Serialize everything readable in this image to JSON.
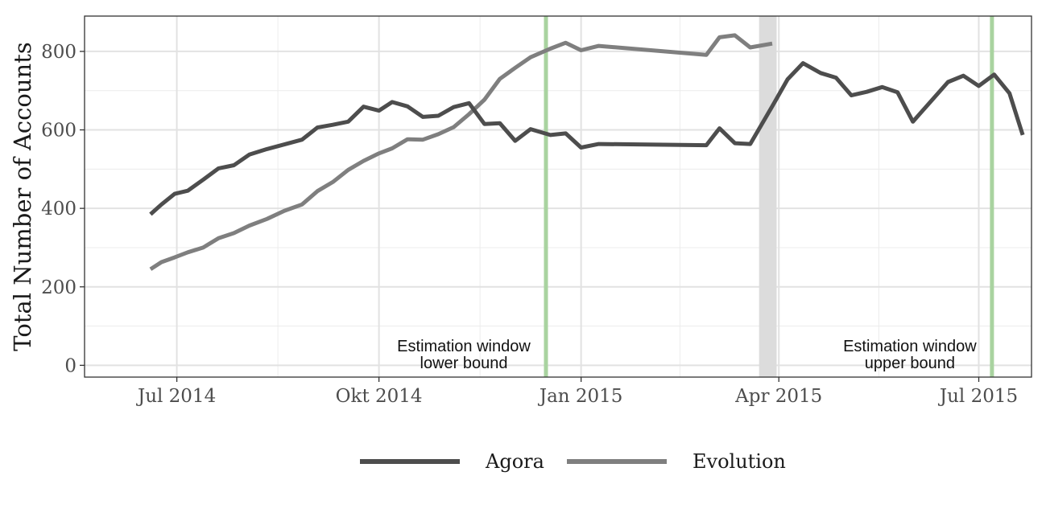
{
  "chart_data": {
    "type": "line",
    "ylabel": "Total Number of Accounts",
    "xlabel": "",
    "title": "",
    "x_ticks": [
      "Jul 2014",
      "Okt 2014",
      "Jan 2015",
      "Apr 2015",
      "Jul 2015"
    ],
    "x_tick_dates": [
      "2014-07-01",
      "2014-10-01",
      "2015-01-01",
      "2015-04-01",
      "2015-07-01"
    ],
    "y_ticks": [
      0,
      200,
      400,
      600,
      800
    ],
    "ylim": [
      -30,
      890
    ],
    "xlim": [
      "2014-05-20",
      "2015-07-25"
    ],
    "grid": true,
    "legend_position": "bottom",
    "vlines": [
      {
        "date": "2014-12-16",
        "label_line1": "Estimation window",
        "label_line2": "lower bound",
        "color": "#a9d3a0"
      },
      {
        "date": "2015-07-07",
        "label_line1": "Estimation window",
        "label_line2": "upper bound",
        "color": "#a9d3a0"
      }
    ],
    "shaded_band": {
      "from": "2015-03-23",
      "to": "2015-03-31",
      "color": "#dcdcdc"
    },
    "series": [
      {
        "name": "Agora",
        "color": "#4d4d4d",
        "points": [
          [
            "2014-06-19",
            385
          ],
          [
            "2014-06-24",
            410
          ],
          [
            "2014-06-30",
            437
          ],
          [
            "2014-07-06",
            445
          ],
          [
            "2014-07-13",
            473
          ],
          [
            "2014-07-20",
            502
          ],
          [
            "2014-07-27",
            510
          ],
          [
            "2014-08-03",
            537
          ],
          [
            "2014-08-11",
            551
          ],
          [
            "2014-08-19",
            563
          ],
          [
            "2014-08-27",
            575
          ],
          [
            "2014-09-03",
            606
          ],
          [
            "2014-09-10",
            613
          ],
          [
            "2014-09-17",
            621
          ],
          [
            "2014-09-24",
            659
          ],
          [
            "2014-10-01",
            649
          ],
          [
            "2014-10-07",
            671
          ],
          [
            "2014-10-14",
            660
          ],
          [
            "2014-10-21",
            633
          ],
          [
            "2014-10-28",
            636
          ],
          [
            "2014-11-04",
            658
          ],
          [
            "2014-11-11",
            668
          ],
          [
            "2014-11-18",
            615
          ],
          [
            "2014-11-25",
            617
          ],
          [
            "2014-12-02",
            572
          ],
          [
            "2014-12-09",
            602
          ],
          [
            "2014-12-18",
            587
          ],
          [
            "2014-12-25",
            591
          ],
          [
            "2015-01-01",
            555
          ],
          [
            "2015-01-09",
            564
          ],
          [
            "2015-02-27",
            561
          ],
          [
            "2015-03-05",
            604
          ],
          [
            "2015-03-12",
            566
          ],
          [
            "2015-03-19",
            564
          ],
          [
            "2015-03-29",
            660
          ],
          [
            "2015-04-05",
            729
          ],
          [
            "2015-04-12",
            770
          ],
          [
            "2015-04-20",
            745
          ],
          [
            "2015-04-27",
            733
          ],
          [
            "2015-05-04",
            688
          ],
          [
            "2015-05-11",
            697
          ],
          [
            "2015-05-18",
            709
          ],
          [
            "2015-05-25",
            696
          ],
          [
            "2015-06-01",
            621
          ],
          [
            "2015-06-17",
            722
          ],
          [
            "2015-06-24",
            738
          ],
          [
            "2015-07-01",
            712
          ],
          [
            "2015-07-08",
            741
          ],
          [
            "2015-07-15",
            693
          ],
          [
            "2015-07-21",
            587
          ]
        ]
      },
      {
        "name": "Evolution",
        "color": "#7f7f7f",
        "points": [
          [
            "2014-06-19",
            245
          ],
          [
            "2014-06-24",
            263
          ],
          [
            "2014-06-30",
            275
          ],
          [
            "2014-07-06",
            288
          ],
          [
            "2014-07-13",
            300
          ],
          [
            "2014-07-20",
            324
          ],
          [
            "2014-07-27",
            337
          ],
          [
            "2014-08-03",
            356
          ],
          [
            "2014-08-11",
            373
          ],
          [
            "2014-08-19",
            394
          ],
          [
            "2014-08-27",
            410
          ],
          [
            "2014-09-03",
            444
          ],
          [
            "2014-09-10",
            467
          ],
          [
            "2014-09-17",
            498
          ],
          [
            "2014-09-24",
            521
          ],
          [
            "2014-10-01",
            540
          ],
          [
            "2014-10-07",
            553
          ],
          [
            "2014-10-14",
            576
          ],
          [
            "2014-10-21",
            575
          ],
          [
            "2014-10-28",
            589
          ],
          [
            "2014-11-04",
            607
          ],
          [
            "2014-11-11",
            640
          ],
          [
            "2014-11-18",
            677
          ],
          [
            "2014-11-25",
            730
          ],
          [
            "2014-12-02",
            758
          ],
          [
            "2014-12-09",
            785
          ],
          [
            "2014-12-18",
            807
          ],
          [
            "2014-12-25",
            822
          ],
          [
            "2015-01-01",
            803
          ],
          [
            "2015-01-09",
            814
          ],
          [
            "2015-02-27",
            791
          ],
          [
            "2015-03-05",
            836
          ],
          [
            "2015-03-12",
            841
          ],
          [
            "2015-03-19",
            810
          ],
          [
            "2015-03-29",
            820
          ]
        ]
      }
    ]
  }
}
